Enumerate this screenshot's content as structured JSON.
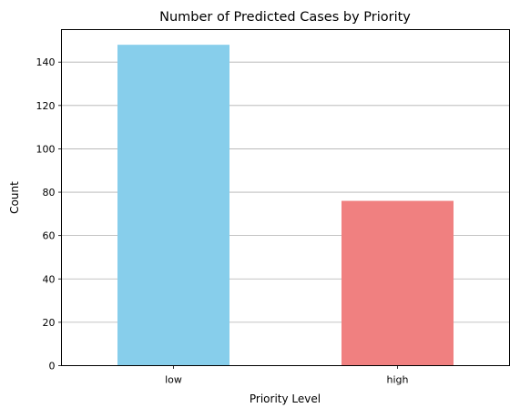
{
  "chart_data": {
    "type": "bar",
    "title": "Number of Predicted Cases by Priority",
    "xlabel": "Priority Level",
    "ylabel": "Count",
    "categories": [
      "low",
      "high"
    ],
    "values": [
      148,
      76
    ],
    "colors": [
      "#87ceeb",
      "#f08080"
    ],
    "ylim": [
      0,
      155
    ],
    "yticks": [
      0,
      20,
      40,
      60,
      80,
      100,
      120,
      140
    ],
    "grid": "y-axis only",
    "legend": "none"
  }
}
